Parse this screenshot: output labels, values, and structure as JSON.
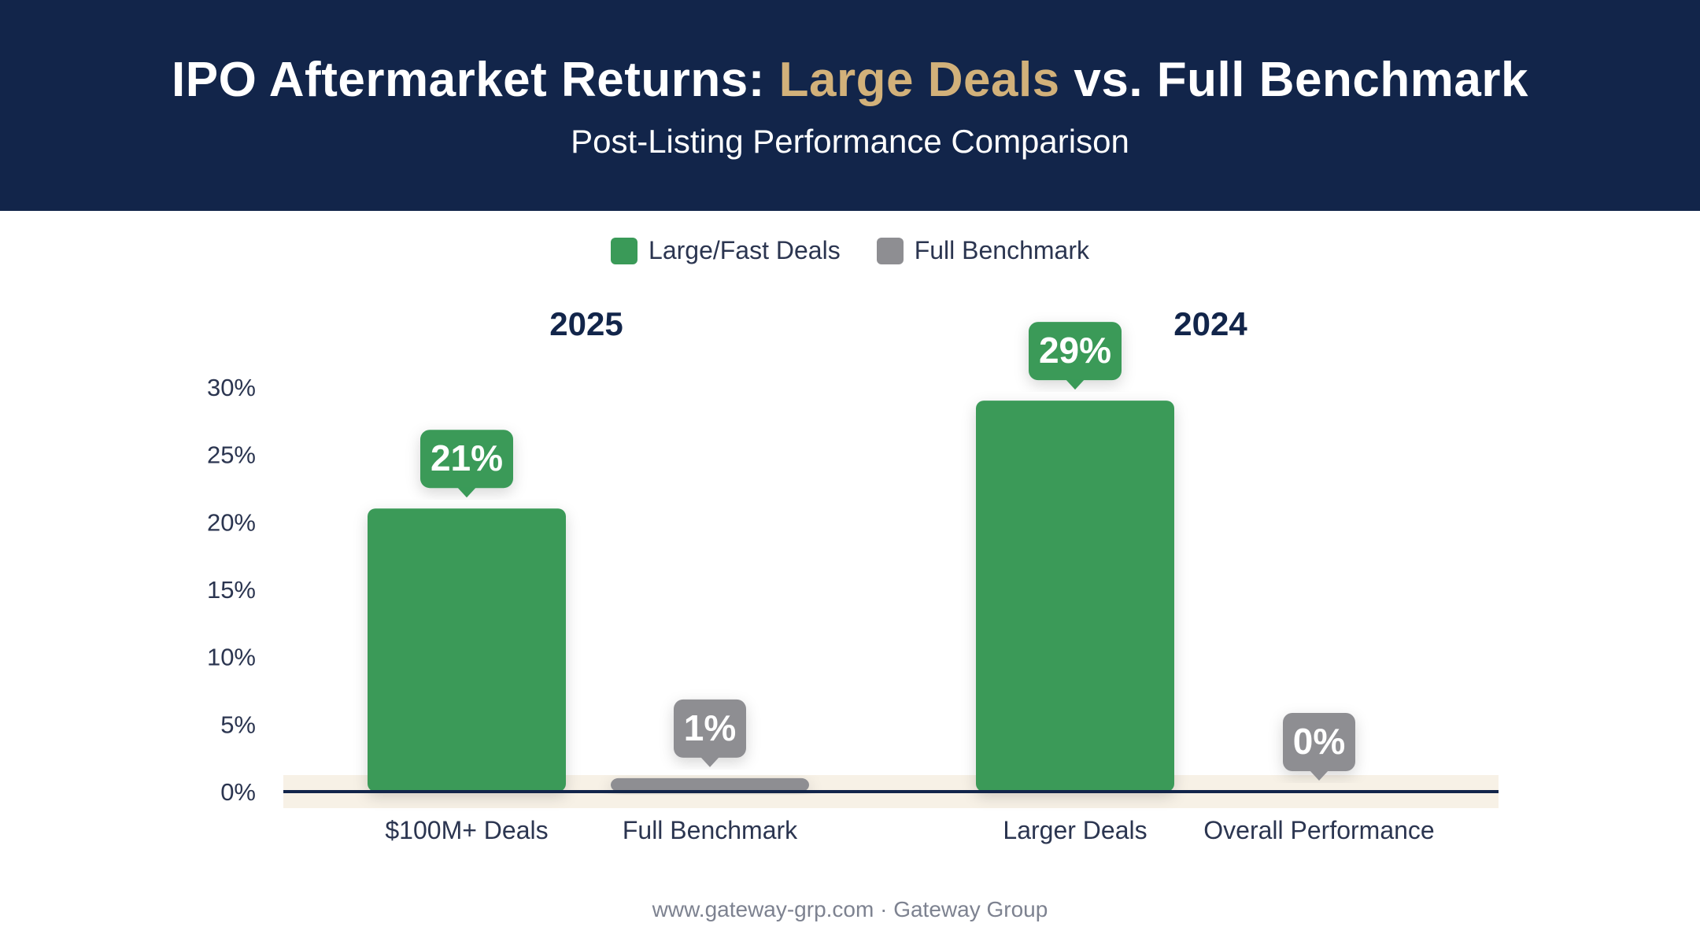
{
  "header": {
    "title_part1": "IPO Aftermarket Returns: ",
    "title_accent": "Large Deals",
    "title_part2": " vs. Full Benchmark",
    "subtitle": "Post-Listing Performance Comparison"
  },
  "legend": [
    {
      "label": "Large/Fast Deals",
      "color": "#3a9a58"
    },
    {
      "label": "Full Benchmark",
      "color": "#8e8e92"
    }
  ],
  "footer": "www.gateway-grp.com · Gateway Group",
  "chart_data": {
    "type": "bar",
    "ylim": [
      0,
      30
    ],
    "yticks": [
      0,
      5,
      10,
      15,
      20,
      25,
      30
    ],
    "ytick_labels": [
      "0%",
      "5%",
      "10%",
      "15%",
      "20%",
      "25%",
      "30%"
    ],
    "groups": [
      {
        "label": "2025",
        "bars": [
          {
            "category": "$100M+ Deals",
            "value": 21,
            "label": "21%",
            "series": "Large/Fast Deals"
          },
          {
            "category": "Full Benchmark",
            "value": 1,
            "label": "1%",
            "series": "Full Benchmark"
          }
        ]
      },
      {
        "label": "2024",
        "bars": [
          {
            "category": "Larger Deals",
            "value": 29,
            "label": "29%",
            "series": "Large/Fast Deals"
          },
          {
            "category": "Overall Performance",
            "value": 0,
            "label": "0%",
            "series": "Full Benchmark"
          }
        ]
      }
    ],
    "colors": {
      "Large/Fast Deals": "#3a9a58",
      "Full Benchmark": "#8e8e92",
      "baseline": "#12254a",
      "baseline_band": "#f7f1e6"
    }
  }
}
